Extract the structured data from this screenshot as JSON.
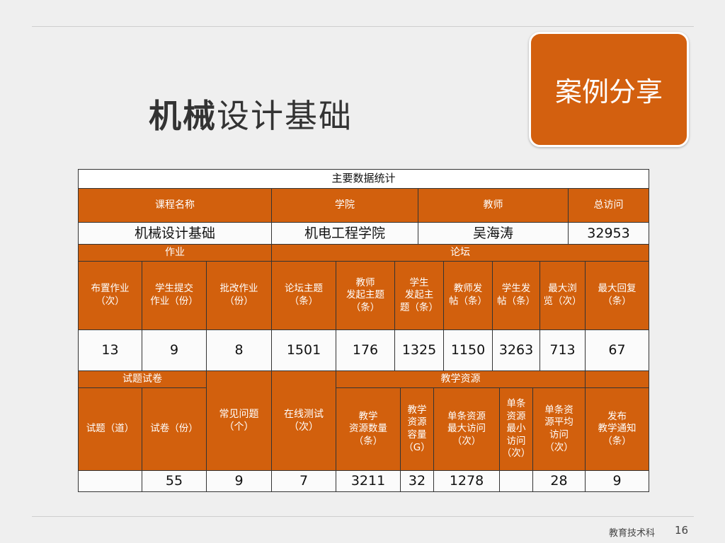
{
  "slide": {
    "title_bold": "机械",
    "title_rest": "设计基础",
    "badge": "案例分享",
    "footer": "教育技术科",
    "page": 16
  },
  "table": {
    "title": "主要数据统计",
    "rows": [
      [
        "课程名称",
        "学院",
        "教师",
        "总访问"
      ],
      [
        "机械设计基础",
        "机电工程学院",
        "吴海涛",
        32953
      ],
      [
        "作业",
        "论坛"
      ],
      [
        "布置作业\n（次）",
        "学生提交\n作业（份）",
        "批改作业\n（份）",
        "论坛主题\n（条）",
        "教师\n发起主题\n（条）",
        "学生\n发起主\n题（条）",
        "教师发\n帖（条）",
        "学生发\n帖（条）",
        "最大浏\n览（次）",
        "最大回复\n（条）"
      ],
      [
        13,
        9,
        8,
        1501,
        176,
        1325,
        1150,
        3263,
        713,
        67
      ],
      [
        "试题试卷",
        "常见问题\n（个）",
        "在线测试\n（次）",
        "教学资源"
      ],
      [
        "试题（道）",
        "试卷（份）",
        "教学\n资源数量\n（条）",
        "教学\n资源\n容量\n（G）",
        "单条资源\n最大访问\n（次）",
        "单条\n资源\n最小\n访问\n（次）",
        "单条资\n源平均\n访问\n（次）",
        "发布\n教学通知\n（条）"
      ],
      [
        55,
        9,
        7,
        3211,
        32,
        1278,
        28,
        9
      ]
    ]
  }
}
